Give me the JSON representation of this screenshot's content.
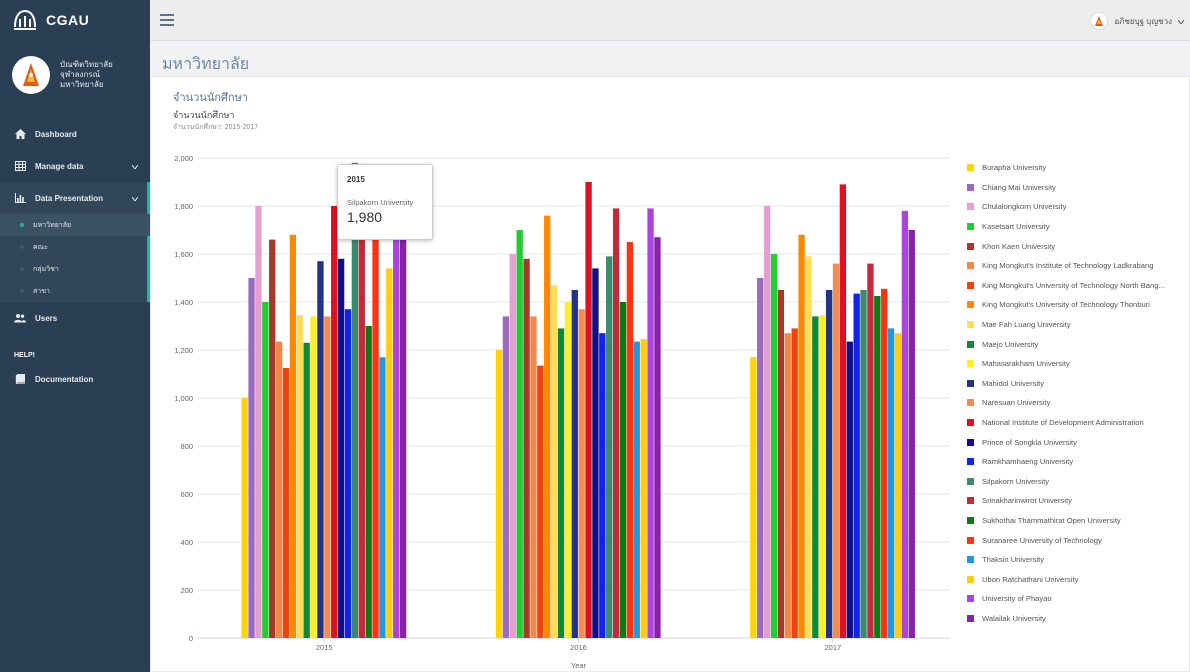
{
  "app": {
    "title": "CGAU"
  },
  "profile": {
    "line1": "บัณฑิตวิทยาลัย",
    "line2": "จุฬาลงกรณ์",
    "line3": "มหาวิทยาลัย"
  },
  "sidebar": {
    "items": [
      {
        "label": "Dashboard",
        "icon": "home-icon"
      },
      {
        "label": "Manage data",
        "icon": "table-icon"
      },
      {
        "label": "Data Presentation",
        "icon": "bar-chart-icon"
      },
      {
        "label": "Users",
        "icon": "users-icon"
      }
    ],
    "subitems": [
      "มหาวิทยาลัย",
      "คณะ",
      "กลุ่มวิชา",
      "สาขา"
    ],
    "help_title": "HELP!",
    "documentation": "Documentation"
  },
  "topbar": {
    "user_name": "อภิชยบุฐ บุญชวง"
  },
  "page": {
    "title": "มหาวิทยาลัย",
    "panel_title": "จำนวนนักศึกษา"
  },
  "tooltip": {
    "category": "2015",
    "series": "Silpakorn University",
    "value": "1,980"
  },
  "chart_data": {
    "type": "bar",
    "title": "จำนวนนักศึกษา",
    "subtitle": "จำนวนนักศึกษา: 2015-2017",
    "xlabel": "Year",
    "ylabel": "",
    "ylim": [
      0,
      2000
    ],
    "yticks": [
      "0",
      "200",
      "400",
      "600",
      "800",
      "1,000",
      "1,200",
      "1,400",
      "1,600",
      "1,800",
      "2,000"
    ],
    "categories": [
      "2015",
      "2016",
      "2017"
    ],
    "grid": true,
    "legend_position": "right",
    "series": [
      {
        "name": "Burapha University",
        "color": "#ffd400",
        "values": [
          1000,
          1200,
          1170
        ]
      },
      {
        "name": "Chiang Mai University",
        "color": "#9b6bc0",
        "values": [
          1500,
          1340,
          1500
        ]
      },
      {
        "name": "Chulalongkorn University",
        "color": "#e49fd0",
        "values": [
          1800,
          1600,
          1800
        ]
      },
      {
        "name": "Kasetsart University",
        "color": "#22cc33",
        "values": [
          1400,
          1700,
          1600
        ]
      },
      {
        "name": "Khon Kaen University",
        "color": "#a33a2a",
        "values": [
          1660,
          1580,
          1450
        ]
      },
      {
        "name": "King Mongkut's Institute of Technology Ladkrabang",
        "color": "#f08848",
        "values": [
          1235,
          1340,
          1270
        ]
      },
      {
        "name": "King Mongkut's University of Technology North Bang...",
        "color": "#ee4411",
        "values": [
          1125,
          1135,
          1290
        ]
      },
      {
        "name": "King Mongkut's University of Technology Thonburi",
        "color": "#ff8800",
        "values": [
          1680,
          1760,
          1680
        ]
      },
      {
        "name": "Mae Fah Luang University",
        "color": "#ffdd55",
        "values": [
          1345,
          1470,
          1590
        ]
      },
      {
        "name": "Maejo University",
        "color": "#118833",
        "values": [
          1230,
          1290,
          1340
        ]
      },
      {
        "name": "Mahasarakham University",
        "color": "#ffee22",
        "values": [
          1340,
          1400,
          1345
        ]
      },
      {
        "name": "Mahidol University",
        "color": "#223388",
        "values": [
          1570,
          1450,
          1450
        ]
      },
      {
        "name": "Naresuan University",
        "color": "#f28c50",
        "values": [
          1340,
          1370,
          1560
        ]
      },
      {
        "name": "National Institute of Development Administration",
        "color": "#dd1122",
        "values": [
          1800,
          1900,
          1890
        ]
      },
      {
        "name": "Prince of Songkla University",
        "color": "#110e88",
        "values": [
          1580,
          1540,
          1235
        ]
      },
      {
        "name": "Ramkhamhaeng University",
        "color": "#1122ee",
        "values": [
          1370,
          1270,
          1435
        ]
      },
      {
        "name": "Silpakorn University",
        "color": "#3a8a6e",
        "values": [
          1980,
          1590,
          1450
        ]
      },
      {
        "name": "Srinakharinwirot University",
        "color": "#c42a3a",
        "values": [
          1870,
          1790,
          1560
        ]
      },
      {
        "name": "Sukhothai Thammathirat Open University",
        "color": "#0e7a14",
        "values": [
          1300,
          1400,
          1425
        ]
      },
      {
        "name": "Suranaree University of Technology",
        "color": "#ff3311",
        "values": [
          1750,
          1650,
          1455
        ]
      },
      {
        "name": "Thaksin University",
        "color": "#2299dd",
        "values": [
          1170,
          1235,
          1290
        ]
      },
      {
        "name": "Ubon Ratchathani University",
        "color": "#ffcc11",
        "values": [
          1540,
          1245,
          1270
        ]
      },
      {
        "name": "University of Phayao",
        "color": "#aa44dd",
        "values": [
          1740,
          1790,
          1780
        ]
      },
      {
        "name": "Walailak University",
        "color": "#8822aa",
        "values": [
          1720,
          1670,
          1700
        ]
      }
    ]
  }
}
